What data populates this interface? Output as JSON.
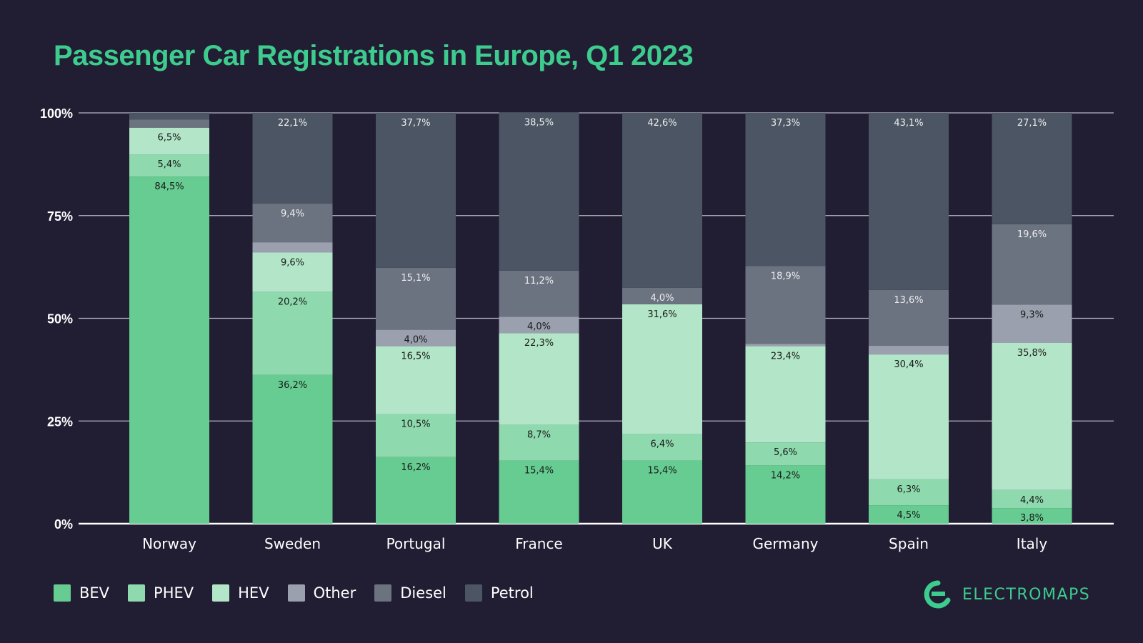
{
  "chart_data": {
    "type": "bar",
    "stacked": true,
    "title": "Passenger Car Registrations in Europe, Q1 2023",
    "categories": [
      "Norway",
      "Sweden",
      "Portugal",
      "France",
      "UK",
      "Germany",
      "Spain",
      "Italy"
    ],
    "ylim": [
      0,
      100
    ],
    "yticks": [
      "0%",
      "25%",
      "50%",
      "75%",
      "100%"
    ],
    "grid": true,
    "legend_position": "bottom-left",
    "series": [
      {
        "name": "BEV",
        "color": "#66cc91",
        "label_color": "#1a1a1a",
        "values": [
          84.5,
          36.2,
          16.2,
          15.4,
          15.4,
          14.2,
          4.5,
          3.8
        ],
        "labels": [
          "84,5%",
          "36,2%",
          "16,2%",
          "15,4%",
          "15,4%",
          "14,2%",
          "4,5%",
          "3,8%"
        ]
      },
      {
        "name": "PHEV",
        "color": "#8ed9ad",
        "label_color": "#1a1a1a",
        "values": [
          5.4,
          20.2,
          10.5,
          8.7,
          6.4,
          5.6,
          6.3,
          4.4
        ],
        "labels": [
          "5,4%",
          "20,2%",
          "10,5%",
          "8,7%",
          "6,4%",
          "5,6%",
          "6,3%",
          "4,4%"
        ]
      },
      {
        "name": "HEV",
        "color": "#b3e6c8",
        "label_color": "#1a1a1a",
        "values": [
          6.5,
          9.6,
          16.5,
          22.3,
          31.6,
          23.4,
          30.4,
          35.8
        ],
        "labels": [
          "6,5%",
          "9,6%",
          "16,5%",
          "22,3%",
          "31,6%",
          "23,4%",
          "30,4%",
          "35,8%"
        ]
      },
      {
        "name": "Other",
        "color": "#9aa0ad",
        "label_color": "#1a1a1a",
        "values": [
          0,
          2.5,
          4.0,
          4.0,
          0,
          0.6,
          2.1,
          9.3
        ],
        "labels": [
          "",
          "",
          "4,0%",
          "4,0%",
          "",
          "",
          "",
          "9,3%"
        ]
      },
      {
        "name": "Diesel",
        "color": "#6b7280",
        "label_color": "#eeeeee",
        "values": [
          2.0,
          9.4,
          15.1,
          11.2,
          4.0,
          18.9,
          13.6,
          19.6
        ],
        "labels": [
          "",
          "9,4%",
          "15,1%",
          "11,2%",
          "4,0%",
          "18,9%",
          "13,6%",
          "19,6%"
        ]
      },
      {
        "name": "Petrol",
        "color": "#4b5563",
        "label_color": "#eeeeee",
        "values": [
          1.6,
          22.1,
          37.7,
          38.5,
          42.6,
          37.3,
          43.1,
          27.1
        ],
        "labels": [
          "",
          "22,1%",
          "37,7%",
          "38,5%",
          "42,6%",
          "37,3%",
          "43,1%",
          "27,1%"
        ]
      }
    ]
  },
  "brand": {
    "name": "ELECTROMAPS",
    "color": "#3dcc8e"
  }
}
